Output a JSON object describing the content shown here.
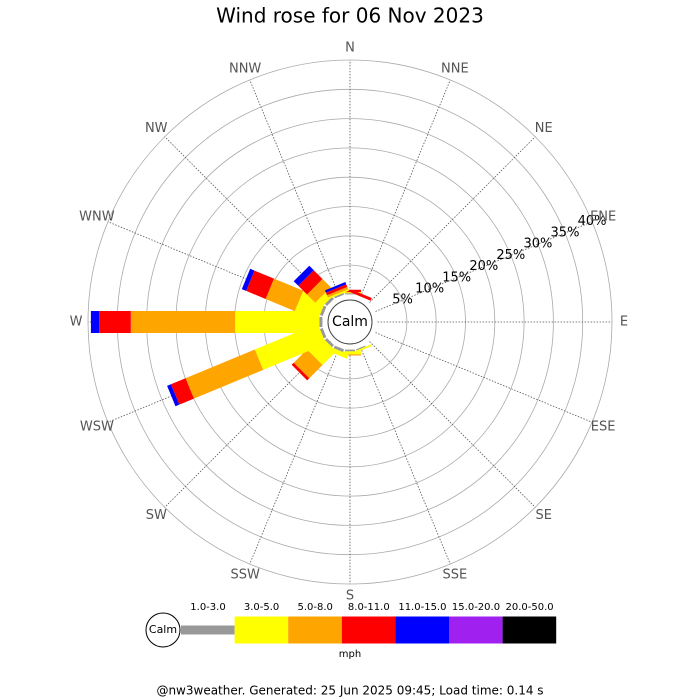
{
  "chart_data": {
    "type": "wind_rose",
    "title": "Wind rose for 06 Nov 2023",
    "directions": [
      "N",
      "NNE",
      "NE",
      "ENE",
      "E",
      "ESE",
      "SE",
      "SSE",
      "S",
      "SSW",
      "SW",
      "WSW",
      "W",
      "WNW",
      "NW",
      "NNW"
    ],
    "calm_label": "Calm",
    "rlim": [
      0,
      40
    ],
    "rticks": [
      {
        "value": 5,
        "label": "5%"
      },
      {
        "value": 10,
        "label": "10%"
      },
      {
        "value": 15,
        "label": "15%"
      },
      {
        "value": 20,
        "label": "20%"
      },
      {
        "value": 25,
        "label": "25%"
      },
      {
        "value": 30,
        "label": "30%"
      },
      {
        "value": 35,
        "label": "35%"
      },
      {
        "value": 40,
        "label": "40%"
      }
    ],
    "series": [
      {
        "name": "1.0-3.0",
        "color": "#999999",
        "values": [
          0.2,
          0,
          0,
          0,
          0,
          0,
          0,
          0.2,
          0.3,
          0.5,
          0.5,
          0.5,
          0.5,
          0.5,
          0.5,
          0.3
        ]
      },
      {
        "name": "3.0-5.0",
        "color": "#ffff00",
        "values": [
          0.2,
          0,
          0,
          0,
          0,
          0,
          0,
          0.3,
          0.5,
          0.8,
          3.3,
          11.6,
          14.4,
          4.2,
          1.3,
          0.3
        ]
      },
      {
        "name": "5.0-8.0",
        "color": "#ffa500",
        "values": [
          0,
          0,
          0,
          0,
          0,
          0,
          0,
          0,
          0.2,
          0,
          3.2,
          12.8,
          17.8,
          5.4,
          2.0,
          0.4
        ]
      },
      {
        "name": "8.0-11.0",
        "color": "#ff0000",
        "values": [
          0.4,
          0.5,
          0,
          0,
          0,
          0,
          0,
          0,
          0,
          0,
          0.5,
          2.7,
          5.4,
          3.6,
          2.1,
          0.5
        ]
      },
      {
        "name": "11.0-15.0",
        "color": "#0000ff",
        "values": [
          0,
          0,
          0,
          0,
          0,
          0,
          0,
          0,
          0,
          0,
          0,
          0.7,
          1.4,
          0.8,
          1.1,
          0.4
        ]
      },
      {
        "name": "15.0-20.0",
        "color": "#a020f0",
        "values": [
          0,
          0,
          0,
          0,
          0,
          0,
          0,
          0,
          0,
          0,
          0,
          0,
          0,
          0,
          0,
          0
        ]
      },
      {
        "name": "20.0-50.0",
        "color": "#000000",
        "values": [
          0,
          0,
          0,
          0,
          0,
          0,
          0,
          0,
          0,
          0,
          0,
          0,
          0,
          0,
          0,
          0
        ]
      }
    ],
    "legend_unit": "mph",
    "footer": "@nw3weather. Generated: 25 Jun 2025 09:45; Load time: 0.14 s"
  }
}
